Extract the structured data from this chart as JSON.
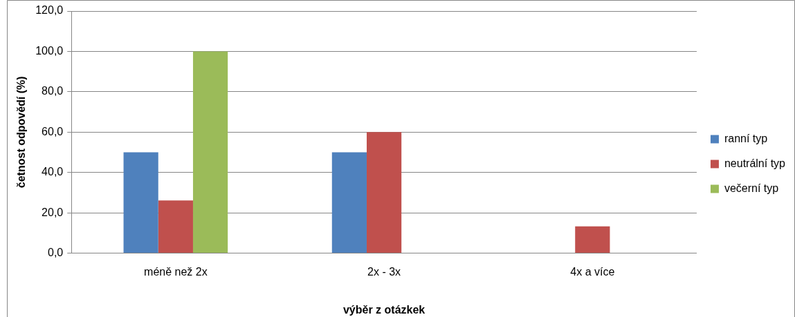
{
  "chart_data": {
    "type": "bar",
    "xlabel": "výběr z otázkek",
    "ylabel": "četnost odpovědí (%)",
    "categories": [
      "méně než 2x",
      "2x - 3x",
      "4x a více"
    ],
    "series": [
      {
        "name": "ranní typ",
        "color": "#4f81bd",
        "values": [
          50,
          50,
          0
        ]
      },
      {
        "name": "neutrální typ",
        "color": "#c0504d",
        "values": [
          26.1,
          60,
          13.3
        ]
      },
      {
        "name": "večerní typ",
        "color": "#9bbb59",
        "values": [
          100,
          0,
          0
        ]
      }
    ],
    "ylim": [
      0,
      120
    ],
    "yticks": [
      {
        "value": 0,
        "label": "0,0"
      },
      {
        "value": 20,
        "label": "20,0"
      },
      {
        "value": 40,
        "label": "40,0"
      },
      {
        "value": 60,
        "label": "60,0"
      },
      {
        "value": 80,
        "label": "80,0"
      },
      {
        "value": 100,
        "label": "100,0"
      },
      {
        "value": 120,
        "label": "120,0"
      }
    ],
    "grid": "y",
    "legend": "right"
  }
}
